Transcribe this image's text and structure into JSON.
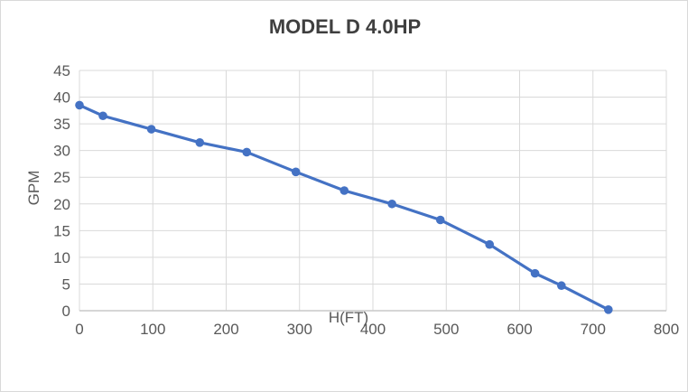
{
  "frame": {
    "background": "#ffffff",
    "border_color": "#d9d9d9"
  },
  "chart_data": {
    "type": "line",
    "title": "MODEL D 4.0HP",
    "xlabel": "H(FT)",
    "ylabel": "GPM",
    "x": [
      0,
      32,
      98,
      164,
      228,
      295,
      361,
      426,
      492,
      559,
      621,
      657,
      721
    ],
    "y": [
      38.5,
      36.5,
      34,
      31.5,
      29.7,
      26,
      22.5,
      20,
      17,
      12.4,
      7,
      4.7,
      0.2
    ],
    "xlim": [
      0,
      800
    ],
    "ylim": [
      0,
      45
    ],
    "xticks": [
      0,
      100,
      200,
      300,
      400,
      500,
      600,
      700,
      800
    ],
    "yticks": [
      0,
      5,
      10,
      15,
      20,
      25,
      30,
      35,
      40,
      45
    ],
    "grid": true,
    "legend": "none",
    "line_color": "#4472c4",
    "marker": "circle",
    "marker_color": "#4472c4",
    "gridline_color": "#d9d9d9",
    "axis_line_color": "#c9c9c9",
    "tick_label_color": "#595959",
    "title_color": "#3f3f3f"
  }
}
